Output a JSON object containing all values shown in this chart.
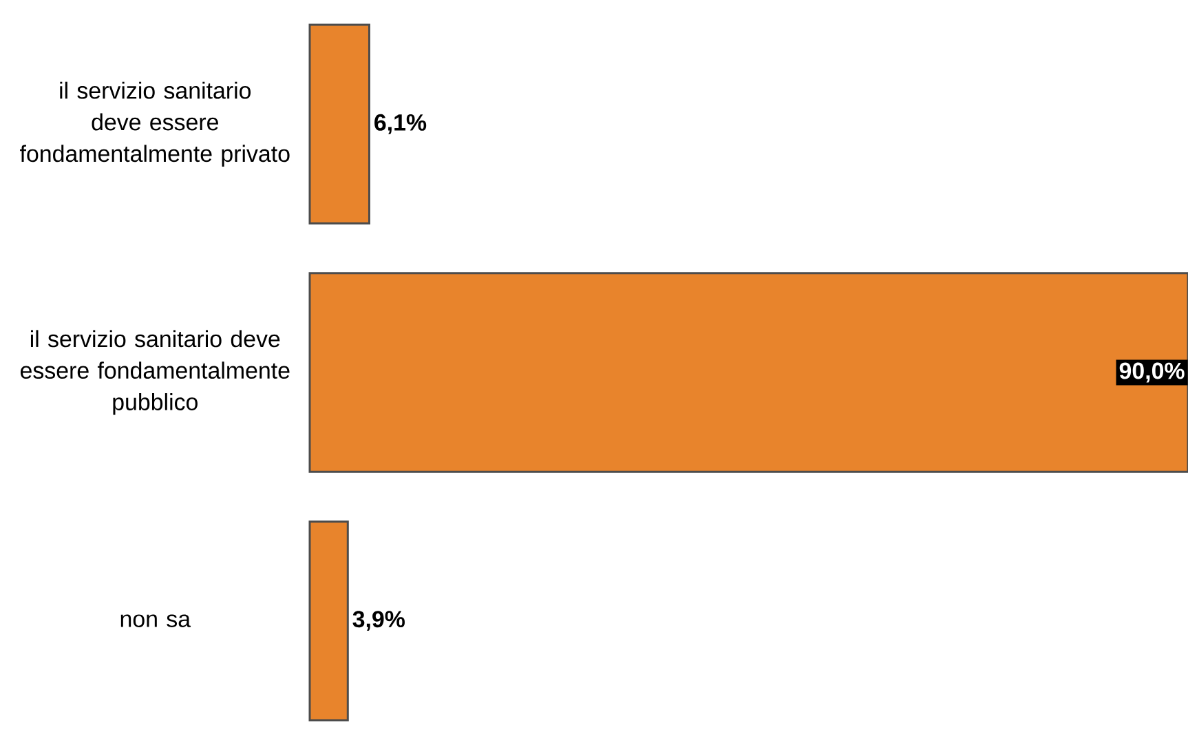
{
  "chart_data": {
    "type": "bar",
    "orientation": "horizontal",
    "categories": [
      "il servizio sanitario deve essere fondamentalmente privato",
      "il servizio sanitario deve essere fondamentalmente pubblico",
      "non sa"
    ],
    "values": [
      6.1,
      90.0,
      3.9
    ],
    "value_labels": [
      "6,1%",
      "90,0%",
      "3,9%"
    ],
    "color": "#e8842c"
  }
}
